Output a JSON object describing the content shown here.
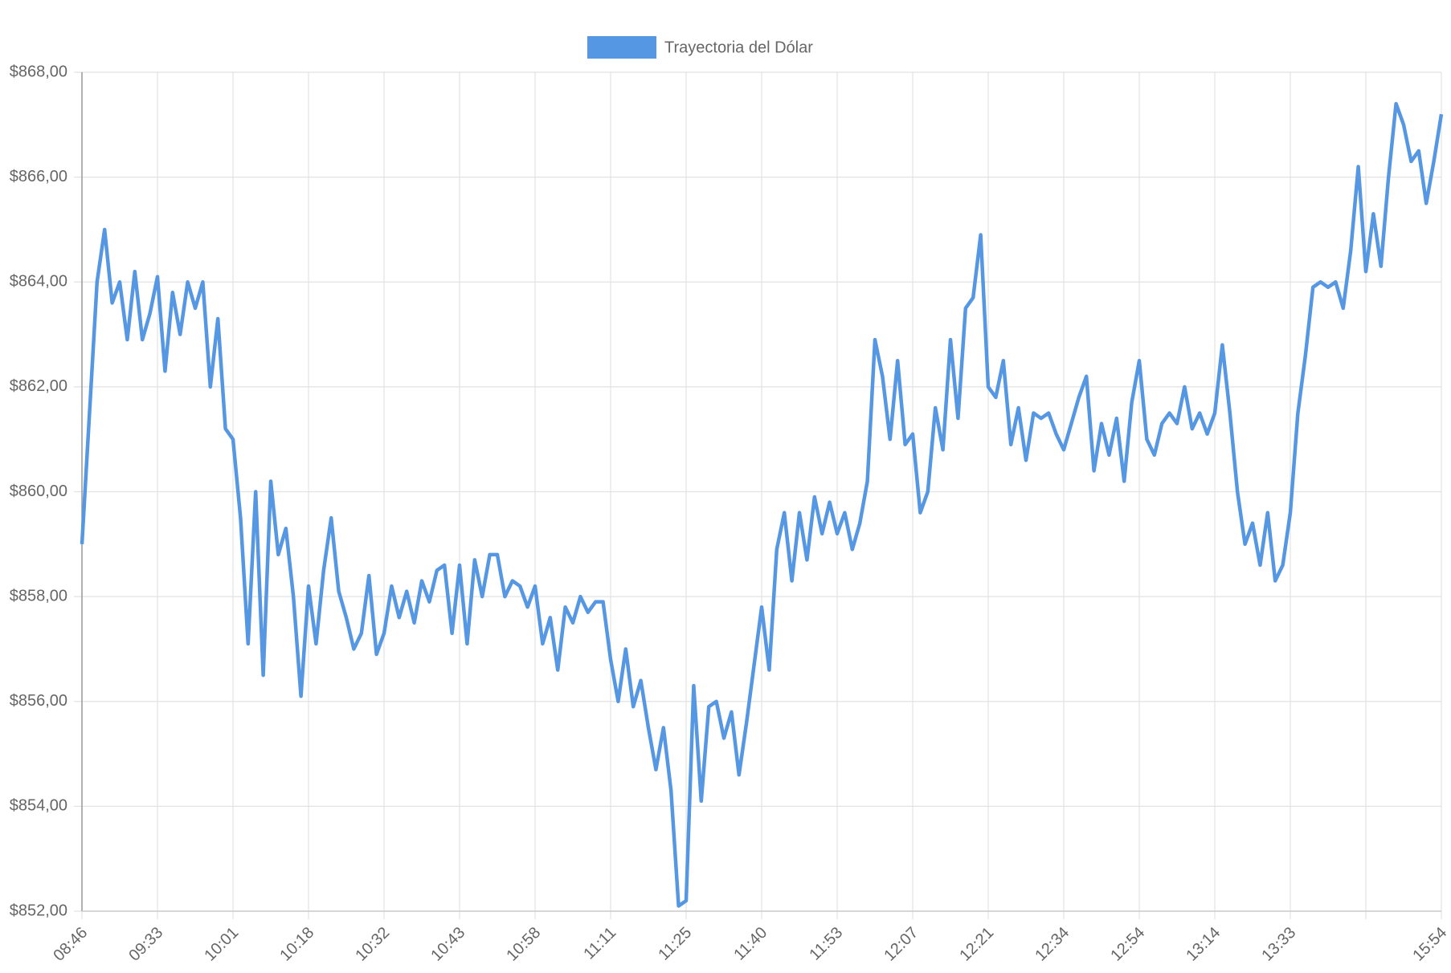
{
  "chart_data": {
    "type": "line",
    "legend": "top",
    "grid": true,
    "series": [
      {
        "name": "Trayectoria del Dólar",
        "color": "#5597e2",
        "values": [
          859,
          861.5,
          864,
          865,
          863.6,
          864,
          862.9,
          864.2,
          862.9,
          863.4,
          864.1,
          862.3,
          863.8,
          863,
          864,
          863.5,
          864,
          862,
          863.3,
          861.2,
          861,
          859.5,
          857.1,
          860,
          856.5,
          860.2,
          858.8,
          859.3,
          858,
          856.1,
          858.2,
          857.1,
          858.5,
          859.5,
          858.1,
          857.6,
          857,
          857.3,
          858.4,
          856.9,
          857.3,
          858.2,
          857.6,
          858.1,
          857.5,
          858.3,
          857.9,
          858.5,
          858.6,
          857.3,
          858.6,
          857.1,
          858.7,
          858,
          858.8,
          858.8,
          858,
          858.3,
          858.2,
          857.8,
          858.2,
          857.1,
          857.6,
          856.6,
          857.8,
          857.5,
          858,
          857.7,
          857.9,
          857.9,
          856.8,
          856,
          857,
          855.9,
          856.4,
          855.5,
          854.7,
          855.5,
          854.3,
          852.1,
          852.2,
          856.3,
          854.1,
          855.9,
          856,
          855.3,
          855.8,
          854.6,
          855.6,
          856.7,
          857.8,
          856.6,
          858.9,
          859.6,
          858.3,
          859.6,
          858.7,
          859.9,
          859.2,
          859.8,
          859.2,
          859.6,
          858.9,
          859.4,
          860.2,
          862.9,
          862.2,
          861,
          862.5,
          860.9,
          861.1,
          859.6,
          860,
          861.6,
          860.8,
          862.9,
          861.4,
          863.5,
          863.7,
          864.9,
          862,
          861.8,
          862.5,
          860.9,
          861.6,
          860.6,
          861.5,
          861.4,
          861.5,
          861.1,
          860.8,
          861.3,
          861.8,
          862.2,
          860.4,
          861.3,
          860.7,
          861.4,
          860.2,
          861.7,
          862.5,
          861,
          860.7,
          861.3,
          861.5,
          861.3,
          862,
          861.2,
          861.5,
          861.1,
          861.5,
          862.8,
          861.5,
          860,
          859,
          859.4,
          858.6,
          859.6,
          858.3,
          858.6,
          859.6,
          861.5,
          862.6,
          863.9,
          864,
          863.9,
          864,
          863.5,
          864.6,
          866.2,
          864.2,
          865.3,
          864.3,
          866,
          867.4,
          867,
          866.3,
          866.5,
          865.5,
          866.3,
          867.2
        ]
      }
    ],
    "categories": [
      "08:46",
      null,
      null,
      null,
      null,
      null,
      null,
      null,
      null,
      null,
      "09:33",
      null,
      null,
      null,
      null,
      null,
      null,
      null,
      null,
      null,
      "10:01",
      null,
      null,
      null,
      null,
      null,
      null,
      null,
      null,
      null,
      "10:18",
      null,
      null,
      null,
      null,
      null,
      null,
      null,
      null,
      null,
      "10:32",
      null,
      null,
      null,
      null,
      null,
      null,
      null,
      null,
      null,
      "10:43",
      null,
      null,
      null,
      null,
      null,
      null,
      null,
      null,
      null,
      "10:58",
      null,
      null,
      null,
      null,
      null,
      null,
      null,
      null,
      null,
      "11:11",
      null,
      null,
      null,
      null,
      null,
      null,
      null,
      null,
      null,
      "11:25",
      null,
      null,
      null,
      null,
      null,
      null,
      null,
      null,
      null,
      "11:40",
      null,
      null,
      null,
      null,
      null,
      null,
      null,
      null,
      null,
      "11:53",
      null,
      null,
      null,
      null,
      null,
      null,
      null,
      null,
      null,
      "12:07",
      null,
      null,
      null,
      null,
      null,
      null,
      null,
      null,
      null,
      "12:21",
      null,
      null,
      null,
      null,
      null,
      null,
      null,
      null,
      null,
      "12:34",
      null,
      null,
      null,
      null,
      null,
      null,
      null,
      null,
      null,
      "12:54",
      null,
      null,
      null,
      null,
      null,
      null,
      null,
      null,
      null,
      "13:14",
      null,
      null,
      null,
      null,
      null,
      null,
      null,
      null,
      null,
      "13:33",
      null,
      null,
      null,
      null,
      null,
      null,
      null,
      null,
      null,
      null,
      null,
      null,
      null,
      null,
      null,
      null,
      null,
      null,
      null,
      "15:54"
    ],
    "ylim": [
      852,
      868
    ],
    "yticks": [
      {
        "value": 852,
        "label": "$852,00"
      },
      {
        "value": 854,
        "label": "$854,00"
      },
      {
        "value": 856,
        "label": "$856,00"
      },
      {
        "value": 858,
        "label": "$858,00"
      },
      {
        "value": 860,
        "label": "$860,00"
      },
      {
        "value": 862,
        "label": "$862,00"
      },
      {
        "value": 864,
        "label": "$864,00"
      },
      {
        "value": 866,
        "label": "$866,00"
      },
      {
        "value": 868,
        "label": "$868,00"
      }
    ]
  }
}
